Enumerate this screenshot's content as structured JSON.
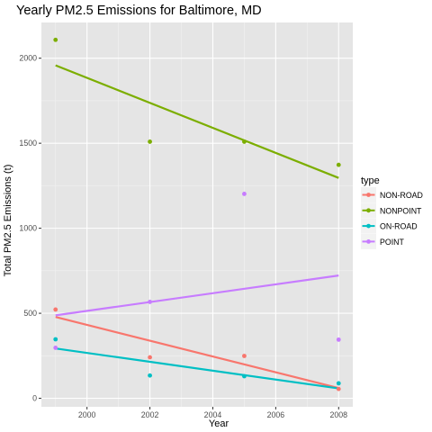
{
  "chart_data": {
    "type": "scatter",
    "title": "Yearly PM2.5 Emissions for Baltimore, MD",
    "xlabel": "Year",
    "ylabel": "Total PM2.5 Emissions (t)",
    "xlim": [
      1998.55,
      2008.45
    ],
    "ylim": [
      -50,
      2210
    ],
    "xticks": [
      2000,
      2002,
      2004,
      2006,
      2008
    ],
    "yticks": [
      0,
      500,
      1000,
      1500,
      2000
    ],
    "grid": true,
    "background": "#e5e5e5",
    "legend": {
      "title": "type",
      "position": "right"
    },
    "series": [
      {
        "name": "NON-ROAD",
        "color": "#f8766d",
        "points": [
          [
            1999,
            522
          ],
          [
            2002,
            241
          ],
          [
            2005,
            249
          ],
          [
            2008,
            55
          ]
        ],
        "trend": [
          [
            1999,
            478
          ],
          [
            2008,
            60
          ]
        ]
      },
      {
        "name": "NONPOINT",
        "color": "#7cae00",
        "points": [
          [
            1999,
            2108
          ],
          [
            2002,
            1509
          ],
          [
            2005,
            1509
          ],
          [
            2008,
            1373
          ]
        ],
        "trend": [
          [
            1999,
            1958
          ],
          [
            2008,
            1296
          ]
        ]
      },
      {
        "name": "ON-ROAD",
        "color": "#00bfc4",
        "points": [
          [
            1999,
            347
          ],
          [
            2002,
            134
          ],
          [
            2005,
            130
          ],
          [
            2008,
            88
          ]
        ],
        "trend": [
          [
            1999,
            293
          ],
          [
            2008,
            58
          ]
        ]
      },
      {
        "name": "POINT",
        "color": "#c77cff",
        "points": [
          [
            1999,
            297
          ],
          [
            2002,
            567
          ],
          [
            2005,
            1202
          ],
          [
            2008,
            345
          ]
        ],
        "trend": [
          [
            1999,
            488
          ],
          [
            2008,
            722
          ]
        ]
      }
    ]
  }
}
